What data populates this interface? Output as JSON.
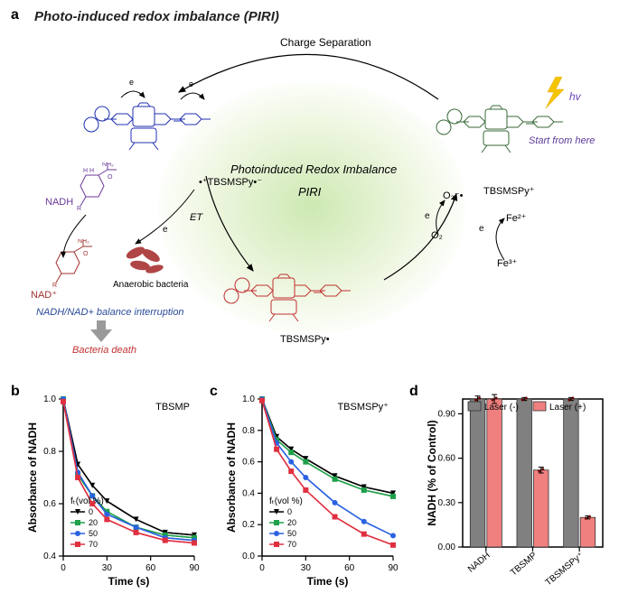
{
  "panel_a": {
    "label": "a",
    "title": "Photo-induced redox imbalance (PIRI)",
    "center_line1": "Photoinduced Redox Imbalance",
    "center_line2": "PIRI",
    "top_arc_label": "Charge Separation",
    "right_start": "Start from here",
    "hv": "hv",
    "tbsmspy_plus": "TBSMSPy⁺",
    "tbsmspy_biradical": "•⁺TBSMSPy•⁻",
    "tbsmspy_radical": "TBSMSPy•",
    "et": "ET",
    "nadh": "NADH",
    "nad_plus": "NAD⁺",
    "bacteria": "Anaerobic bacteria",
    "disruption": "NADH/NAD+ balance interruption",
    "death": "Bacteria death",
    "o2": "O₂",
    "o2_radical": "O₂⁻•",
    "fe2": "Fe²⁺",
    "fe3": "Fe³⁺",
    "electron": "e"
  },
  "panel_b": {
    "label": "b",
    "title": "TBSMP",
    "ylabel": "Absorbance of NADH",
    "xlabel": "Time (s)",
    "legend_title": "fₜ(vol %)",
    "xlim": [
      0,
      90
    ],
    "ylim": [
      0.4,
      1.0
    ],
    "xticks": [
      0,
      30,
      60,
      90
    ],
    "yticks": [
      0.4,
      0.6,
      0.8,
      1.0
    ],
    "series": [
      {
        "name": "0",
        "color": "#000000",
        "marker": "triangle-down",
        "x": [
          0,
          10,
          20,
          30,
          50,
          70,
          90
        ],
        "y": [
          1.0,
          0.75,
          0.67,
          0.61,
          0.54,
          0.49,
          0.48
        ]
      },
      {
        "name": "20",
        "color": "#1fa04a",
        "marker": "square",
        "x": [
          0,
          10,
          20,
          30,
          50,
          70,
          90
        ],
        "y": [
          1.0,
          0.71,
          0.63,
          0.57,
          0.51,
          0.48,
          0.47
        ]
      },
      {
        "name": "50",
        "color": "#2a62e0",
        "marker": "circle",
        "x": [
          0,
          10,
          20,
          30,
          50,
          70,
          90
        ],
        "y": [
          1.0,
          0.72,
          0.63,
          0.56,
          0.51,
          0.47,
          0.46
        ]
      },
      {
        "name": "70",
        "color": "#e03040",
        "marker": "square",
        "x": [
          0,
          10,
          20,
          30,
          50,
          70,
          90
        ],
        "y": [
          0.99,
          0.7,
          0.6,
          0.54,
          0.49,
          0.46,
          0.45
        ]
      }
    ]
  },
  "panel_c": {
    "label": "c",
    "title": "TBSMSPy⁺",
    "ylabel": "Absorbance of NADH",
    "xlabel": "Time (s)",
    "legend_title": "fₜ(vol %)",
    "xlim": [
      0,
      90
    ],
    "ylim": [
      0.0,
      1.0
    ],
    "xticks": [
      0,
      30,
      60,
      90
    ],
    "yticks": [
      0.0,
      0.2,
      0.4,
      0.6,
      0.8,
      1.0
    ],
    "series": [
      {
        "name": "0",
        "color": "#000000",
        "marker": "triangle-down",
        "x": [
          0,
          10,
          20,
          30,
          50,
          70,
          90
        ],
        "y": [
          1.0,
          0.76,
          0.68,
          0.62,
          0.51,
          0.44,
          0.4
        ]
      },
      {
        "name": "20",
        "color": "#1fa04a",
        "marker": "square",
        "x": [
          0,
          10,
          20,
          30,
          50,
          70,
          90
        ],
        "y": [
          1.0,
          0.74,
          0.66,
          0.6,
          0.49,
          0.42,
          0.38
        ]
      },
      {
        "name": "50",
        "color": "#2a62e0",
        "marker": "circle",
        "x": [
          0,
          10,
          20,
          30,
          50,
          70,
          90
        ],
        "y": [
          1.0,
          0.72,
          0.6,
          0.5,
          0.34,
          0.22,
          0.13
        ]
      },
      {
        "name": "70",
        "color": "#e03040",
        "marker": "square",
        "x": [
          0,
          10,
          20,
          30,
          50,
          70,
          90
        ],
        "y": [
          0.99,
          0.68,
          0.54,
          0.42,
          0.25,
          0.14,
          0.07
        ]
      }
    ]
  },
  "panel_d": {
    "label": "d",
    "ylabel": "NADH (% of Control)",
    "ylim": [
      0.0,
      1.0
    ],
    "yticks": [
      0.0,
      0.3,
      0.6,
      0.9
    ],
    "categories": [
      "NADH",
      "TBSMP",
      "TBSMSPy⁺"
    ],
    "series": [
      {
        "name": "Laser (-)",
        "color": "#808080",
        "values": [
          1.0,
          1.0,
          1.0
        ],
        "err": [
          0.02,
          0.01,
          0.01
        ]
      },
      {
        "name": "Laser (+)",
        "color": "#f08080",
        "values": [
          1.0,
          0.52,
          0.2
        ],
        "err": [
          0.03,
          0.02,
          0.01
        ]
      }
    ],
    "border_color": "#000000",
    "bg": "#ffffff"
  },
  "chart_style": {
    "axis_color": "#000000",
    "axis_width": 1.5,
    "line_width": 1.5,
    "marker_size": 5
  }
}
